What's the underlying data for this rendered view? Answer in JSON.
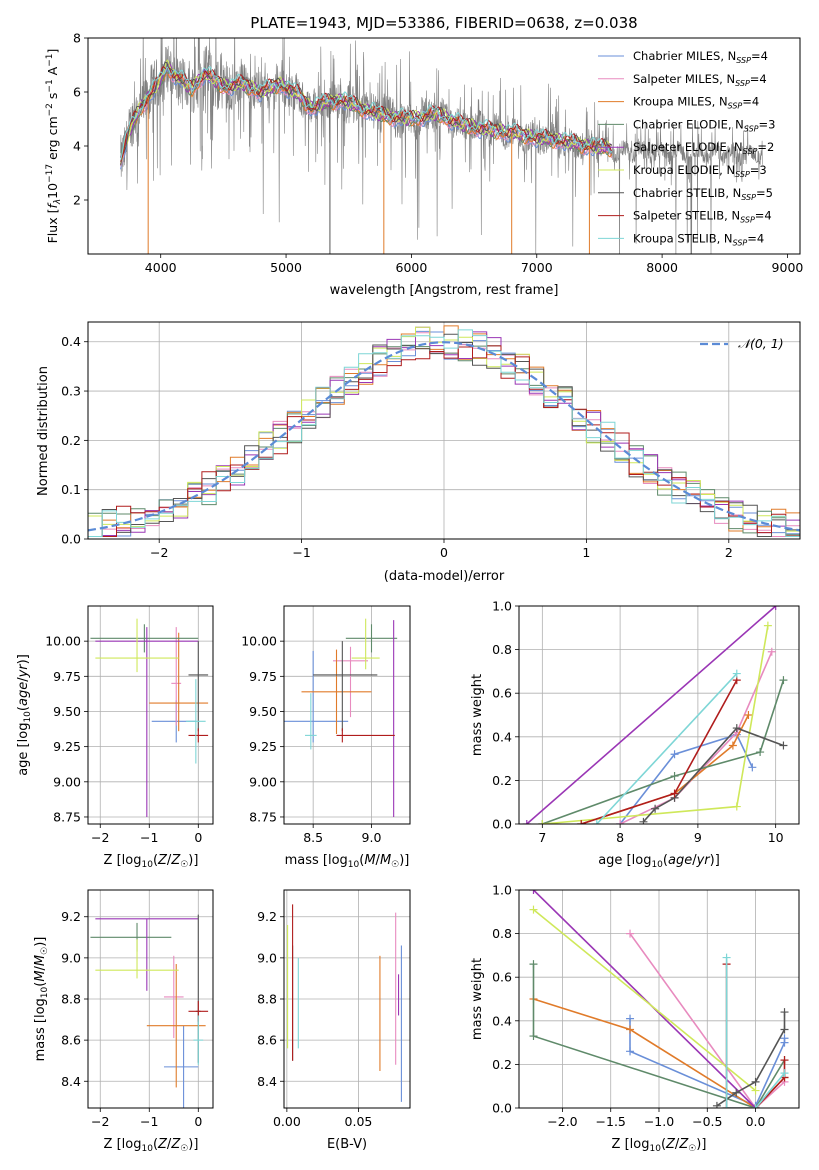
{
  "title": "PLATE=1943, MJD=53386, FIBERID=0638, z=0.038",
  "colors": {
    "chabrier_miles": "#6a8fd8",
    "salpeter_miles": "#e88bbf",
    "kroupa_miles": "#e07b2a",
    "chabrier_elodie": "#5f8a6a",
    "salpeter_elodie": "#9a36b5",
    "kroupa_elodie": "#cfe85a",
    "chabrier_stelib": "#555555",
    "salpeter_stelib": "#b01d1d",
    "kroupa_stelib": "#7ed6d6",
    "data": "#808080",
    "gaussian": "#5b8bd6",
    "grid": "#b0b0b0"
  },
  "chart_data": [
    {
      "id": "spectrum",
      "type": "line",
      "title": "PLATE=1943, MJD=53386, FIBERID=0638, z=0.038",
      "xlabel": "wavelength [Angstrom, rest frame]",
      "ylabel": "Flux [f_λ10⁻¹⁷ erg cm⁻² s⁻¹ A⁻¹]",
      "xlim": [
        3420,
        9100
      ],
      "ylim": [
        0,
        8
      ],
      "xticks": [
        "4000",
        "5000",
        "6000",
        "7000",
        "8000",
        "9000"
      ],
      "yticks": [
        "2",
        "4",
        "6",
        "8"
      ],
      "legend_position": "right",
      "legend": [
        "Chabrier MILES, N_SSP=4",
        "Salpeter MILES, N_SSP=4",
        "Kroupa MILES, N_SSP=4",
        "Chabrier ELODIE, N_SSP=3",
        "Salpeter ELODIE, N_SSP=2",
        "Kroupa ELODIE, N_SSP=3",
        "Chabrier STELIB, N_SSP=5",
        "Salpeter STELIB, N_SSP=4",
        "Kroupa STELIB, N_SSP=4"
      ],
      "model_continuum": {
        "x": [
          3680,
          3750,
          3850,
          3950,
          4050,
          4150,
          4250,
          4350,
          4500,
          4650,
          4800,
          4950,
          5100,
          5200,
          5300,
          5450,
          5600,
          5800,
          6000,
          6200,
          6400,
          6600,
          6800,
          7000,
          7200,
          7400,
          7600
        ],
        "y": [
          3.4,
          4.6,
          5.5,
          6.1,
          6.9,
          6.5,
          6.1,
          6.7,
          6.2,
          6.3,
          6.0,
          6.3,
          5.9,
          5.4,
          5.6,
          5.7,
          5.4,
          5.1,
          5.0,
          5.2,
          4.8,
          4.6,
          4.5,
          4.3,
          4.2,
          4.0,
          3.9
        ]
      },
      "data_extends_to": 8800
    },
    {
      "id": "residuals",
      "type": "bar",
      "xlabel": "(data-model)/error",
      "ylabel": "Normed distribution",
      "xlim": [
        -2.5,
        2.5
      ],
      "ylim": [
        0,
        0.44
      ],
      "xticks": [
        "−2",
        "−1",
        "0",
        "1",
        "2"
      ],
      "yticks": [
        "0.0",
        "0.1",
        "0.2",
        "0.3",
        "0.4"
      ],
      "legend": [
        "𝒩(0, 1)"
      ],
      "legend_position": "top-right",
      "bin_width": 0.1,
      "envelope_note": "nine step histograms scattered around N(0,1)"
    },
    {
      "id": "age_vs_Z",
      "type": "scatter",
      "xlabel": "Z [log₁₀(Z/Z☉)]",
      "ylabel": "age  [log₁₀(age/yr)]",
      "xlim": [
        -2.25,
        0.3
      ],
      "ylim": [
        8.7,
        10.25
      ],
      "xticks": [
        "−2",
        "−1",
        "0"
      ],
      "yticks": [
        "8.75",
        "9.00",
        "9.25",
        "9.50",
        "9.75",
        "10.00"
      ],
      "points": [
        {
          "series": "Chabrier MILES",
          "x": -0.45,
          "xerr": [
            0.5,
            0.4
          ],
          "y": 9.43,
          "yerr": [
            0.15,
            0.15
          ]
        },
        {
          "series": "Salpeter MILES",
          "x": -0.45,
          "xerr": [
            0.1,
            0.1
          ],
          "y": 9.7,
          "yerr": [
            0.3,
            0.4
          ]
        },
        {
          "series": "Kroupa MILES",
          "x": -0.4,
          "xerr": [
            0.6,
            0.6
          ],
          "y": 9.56,
          "yerr": [
            0.2,
            0.5
          ]
        },
        {
          "series": "Chabrier ELODIE",
          "x": -1.1,
          "xerr": [
            1.1,
            1.1
          ],
          "y": 10.02,
          "yerr": [
            0.1,
            0.1
          ]
        },
        {
          "series": "Salpeter ELODIE",
          "x": -1.05,
          "xerr": [
            1.05,
            1.05
          ],
          "y": 10.0,
          "yerr": [
            1.25,
            0.1
          ]
        },
        {
          "series": "Kroupa ELODIE",
          "x": -1.25,
          "xerr": [
            0.85,
            0.85
          ],
          "y": 9.88,
          "yerr": [
            0.1,
            0.28
          ]
        },
        {
          "series": "Chabrier STELIB",
          "x": 0.0,
          "xerr": [
            0.2,
            0.2
          ],
          "y": 9.76,
          "yerr": [
            0.4,
            0.24
          ]
        },
        {
          "series": "Salpeter STELIB",
          "x": 0.0,
          "xerr": [
            0.2,
            0.2
          ],
          "y": 9.33,
          "yerr": [
            0.05,
            0.05
          ]
        },
        {
          "series": "Kroupa STELIB",
          "x": -0.05,
          "xerr": [
            0.2,
            0.2
          ],
          "y": 9.43,
          "yerr": [
            0.3,
            0.3
          ]
        }
      ]
    },
    {
      "id": "age_vs_mass",
      "type": "scatter",
      "xlabel": "mass [log₁₀(M/M☉)]",
      "xlim": [
        8.25,
        9.33
      ],
      "ylim": [
        8.7,
        10.25
      ],
      "xticks": [
        "8.5",
        "9.0"
      ],
      "yticks": [
        "8.75",
        "9.00",
        "9.25",
        "9.50",
        "9.75",
        "10.00"
      ],
      "points": [
        {
          "series": "Chabrier MILES",
          "x": 8.5,
          "xerr": [
            0.3,
            0.3
          ],
          "y": 9.43,
          "yerr": [
            0.15,
            0.5
          ]
        },
        {
          "series": "Salpeter MILES",
          "x": 8.82,
          "xerr": [
            0.15,
            0.15
          ],
          "y": 9.86,
          "yerr": [
            0.4,
            0.1
          ]
        },
        {
          "series": "Kroupa MILES",
          "x": 8.7,
          "xerr": [
            0.3,
            0.3
          ],
          "y": 9.64,
          "yerr": [
            0.3,
            0.3
          ]
        },
        {
          "series": "Chabrier ELODIE",
          "x": 9.0,
          "xerr": [
            0.22,
            0.22
          ],
          "y": 10.02,
          "yerr": [
            0.1,
            0.1
          ]
        },
        {
          "series": "Salpeter ELODIE",
          "x": 9.19,
          "xerr": [
            0.0,
            0.0
          ],
          "y": 9.45,
          "yerr": [
            0.7,
            0.7
          ]
        },
        {
          "series": "Kroupa ELODIE",
          "x": 8.95,
          "xerr": [
            0.12,
            0.12
          ],
          "y": 9.88,
          "yerr": [
            0.08,
            0.28
          ]
        },
        {
          "series": "Chabrier STELIB",
          "x": 8.75,
          "xerr": [
            0.25,
            0.3
          ],
          "y": 9.76,
          "yerr": [
            0.4,
            0.24
          ]
        },
        {
          "series": "Salpeter STELIB",
          "x": 8.75,
          "xerr": [
            0.05,
            0.45
          ],
          "y": 9.33,
          "yerr": [
            0.05,
            0.05
          ]
        },
        {
          "series": "Kroupa STELIB",
          "x": 8.48,
          "xerr": [
            0.05,
            0.05
          ],
          "y": 9.33,
          "yerr": [
            0.1,
            0.3
          ]
        }
      ]
    },
    {
      "id": "weight_vs_age",
      "type": "line",
      "xlabel": "age  [log₁₀(age/yr)]",
      "ylabel": "mass weight",
      "xlim": [
        6.7,
        10.3
      ],
      "ylim": [
        0,
        1
      ],
      "xticks": [
        "7",
        "8",
        "9",
        "10"
      ],
      "yticks": [
        "0.0",
        "0.2",
        "0.4",
        "0.6",
        "0.8",
        "1.0"
      ],
      "series": [
        {
          "name": "Chabrier MILES",
          "x": [
            8.0,
            8.7,
            9.5,
            9.7
          ],
          "y": [
            0.0,
            0.32,
            0.41,
            0.26
          ]
        },
        {
          "name": "Salpeter MILES",
          "x": [
            8.0,
            8.7,
            9.5,
            9.95
          ],
          "y": [
            0.0,
            0.12,
            0.42,
            0.79
          ]
        },
        {
          "name": "Kroupa MILES",
          "x": [
            7.5,
            8.7,
            9.45,
            9.65
          ],
          "y": [
            0.0,
            0.14,
            0.36,
            0.5
          ]
        },
        {
          "name": "Chabrier ELODIE",
          "x": [
            7.0,
            8.7,
            9.8,
            10.1
          ],
          "y": [
            0.0,
            0.22,
            0.33,
            0.66
          ]
        },
        {
          "name": "Salpeter ELODIE",
          "x": [
            6.8,
            10.0
          ],
          "y": [
            0.0,
            1.0
          ]
        },
        {
          "name": "Kroupa ELODIE",
          "x": [
            7.0,
            9.5,
            9.9
          ],
          "y": [
            0.0,
            0.08,
            0.91
          ]
        },
        {
          "name": "Chabrier STELIB",
          "x": [
            8.3,
            8.45,
            8.7,
            9.5,
            10.1
          ],
          "y": [
            0.01,
            0.07,
            0.12,
            0.44,
            0.36
          ]
        },
        {
          "name": "Salpeter STELIB",
          "x": [
            7.5,
            8.7,
            9.5
          ],
          "y": [
            0.0,
            0.14,
            0.66
          ]
        },
        {
          "name": "Kroupa STELIB",
          "x": [
            7.7,
            9.5
          ],
          "y": [
            0.0,
            0.69
          ]
        }
      ]
    },
    {
      "id": "mass_vs_Z",
      "type": "scatter",
      "xlabel": "Z [log₁₀(Z/Z☉)]",
      "ylabel": "mass [log₁₀(M/M☉)]",
      "xlim": [
        -2.25,
        0.3
      ],
      "ylim": [
        8.27,
        9.33
      ],
      "xticks": [
        "−2",
        "−1",
        "0"
      ],
      "yticks": [
        "8.4",
        "8.6",
        "8.8",
        "9.0",
        "9.2"
      ],
      "points": [
        {
          "series": "Chabrier MILES",
          "x": -0.3,
          "xerr": [
            0.4,
            0.3
          ],
          "y": 8.47,
          "yerr": [
            0.2,
            0.2
          ]
        },
        {
          "series": "Salpeter MILES",
          "x": -0.5,
          "xerr": [
            0.2,
            0.2
          ],
          "y": 8.81,
          "yerr": [
            0.2,
            0.2
          ]
        },
        {
          "series": "Kroupa MILES",
          "x": -0.45,
          "xerr": [
            0.6,
            0.6
          ],
          "y": 8.67,
          "yerr": [
            0.3,
            0.3
          ]
        },
        {
          "series": "Chabrier ELODIE",
          "x": -1.25,
          "xerr": [
            0.95,
            0.7
          ],
          "y": 9.1,
          "yerr": [
            0.07,
            0.07
          ]
        },
        {
          "series": "Salpeter ELODIE",
          "x": -1.05,
          "xerr": [
            1.05,
            1.05
          ],
          "y": 9.19,
          "yerr": [
            0.35,
            0.0
          ]
        },
        {
          "series": "Kroupa ELODIE",
          "x": -1.25,
          "xerr": [
            0.85,
            0.85
          ],
          "y": 8.94,
          "yerr": [
            0.04,
            0.15
          ]
        },
        {
          "series": "Chabrier STELIB",
          "x": 0.0,
          "xerr": [
            0.05,
            0.05
          ],
          "y": 8.74,
          "yerr": [
            0.25,
            0.47
          ]
        },
        {
          "series": "Salpeter STELIB",
          "x": 0.0,
          "xerr": [
            0.2,
            0.2
          ],
          "y": 8.74,
          "yerr": [
            0.05,
            0.05
          ]
        },
        {
          "series": "Kroupa STELIB",
          "x": 0.0,
          "xerr": [
            0.1,
            0.1
          ],
          "y": 8.6,
          "yerr": [
            0.12,
            0.12
          ]
        }
      ]
    },
    {
      "id": "mass_vs_EBV",
      "type": "scatter",
      "xlabel": "E(B-V)",
      "xlim": [
        -0.002,
        0.086
      ],
      "ylim": [
        8.27,
        9.33
      ],
      "xticks": [
        "0.00",
        "0.05"
      ],
      "yticks": [
        "8.4",
        "8.6",
        "8.8",
        "9.0",
        "9.2"
      ],
      "points": [
        {
          "series": "Chabrier MILES",
          "x": 0.08,
          "y": 8.68,
          "yerr": [
            0.38,
            0.38
          ]
        },
        {
          "series": "Salpeter MILES",
          "x": 0.076,
          "y": 8.85,
          "yerr": [
            0.37,
            0.37
          ]
        },
        {
          "series": "Kroupa MILES",
          "x": 0.065,
          "y": 8.73,
          "yerr": [
            0.28,
            0.28
          ]
        },
        {
          "series": "Salpeter ELODIE",
          "x": 0.078,
          "y": 8.82,
          "yerr": [
            0.1,
            0.1
          ]
        },
        {
          "series": "Chabrier STELIB",
          "x": 0.004,
          "y": 8.78,
          "yerr": [
            0.28,
            0.28
          ]
        },
        {
          "series": "Salpeter STELIB",
          "x": 0.004,
          "y": 8.88,
          "yerr": [
            0.38,
            0.38
          ]
        },
        {
          "series": "Kroupa STELIB",
          "x": 0.008,
          "y": 8.78,
          "yerr": [
            0.22,
            0.22
          ]
        },
        {
          "series": "Kroupa ELODIE",
          "x": 0.0005,
          "y": 8.86,
          "yerr": [
            0.3,
            0.3
          ]
        }
      ]
    },
    {
      "id": "weight_vs_Z",
      "type": "line",
      "xlabel": "Z [log₁₀(Z/Z☉)]",
      "ylabel": "mass weight",
      "xlim": [
        -2.45,
        0.45
      ],
      "ylim": [
        0,
        1
      ],
      "xticks": [
        "−2.0",
        "−1.5",
        "−1.0",
        "−0.5",
        "0.0"
      ],
      "yticks": [
        "0.0",
        "0.2",
        "0.4",
        "0.6",
        "0.8",
        "1.0"
      ],
      "series": [
        {
          "name": "Chabrier MILES",
          "x": [
            -1.3,
            -1.3,
            0.0,
            0.3,
            0.3
          ],
          "y": [
            0.41,
            0.26,
            0.01,
            0.3,
            0.32
          ]
        },
        {
          "name": "Salpeter MILES",
          "x": [
            -1.3,
            0.0,
            0.3
          ],
          "y": [
            0.8,
            0.0,
            0.12
          ]
        },
        {
          "name": "Kroupa MILES",
          "x": [
            -2.3,
            -1.3,
            0.0,
            0.3
          ],
          "y": [
            0.5,
            0.36,
            0.0,
            0.14
          ]
        },
        {
          "name": "Chabrier ELODIE",
          "x": [
            -2.3,
            -2.3,
            0.0,
            0.3
          ],
          "y": [
            0.66,
            0.33,
            0.0,
            0.22
          ]
        },
        {
          "name": "Salpeter ELODIE",
          "x": [
            -2.3,
            0.0
          ],
          "y": [
            1.0,
            0.0
          ]
        },
        {
          "name": "Kroupa ELODIE",
          "x": [
            -2.3,
            0.0
          ],
          "y": [
            0.91,
            0.08
          ]
        },
        {
          "name": "Chabrier STELIB",
          "x": [
            -0.4,
            -0.2,
            0.0,
            0.3,
            0.3
          ],
          "y": [
            0.01,
            0.07,
            0.12,
            0.36,
            0.44
          ]
        },
        {
          "name": "Salpeter STELIB",
          "x": [
            -0.3,
            -0.3,
            0.0,
            0.3,
            0.3
          ],
          "y": [
            0.66,
            0.0,
            0.0,
            0.14,
            0.22
          ]
        },
        {
          "name": "Kroupa STELIB",
          "x": [
            -0.3,
            -0.3,
            0.0,
            0.3
          ],
          "y": [
            0.69,
            0.0,
            0.0,
            0.16
          ]
        }
      ]
    }
  ]
}
